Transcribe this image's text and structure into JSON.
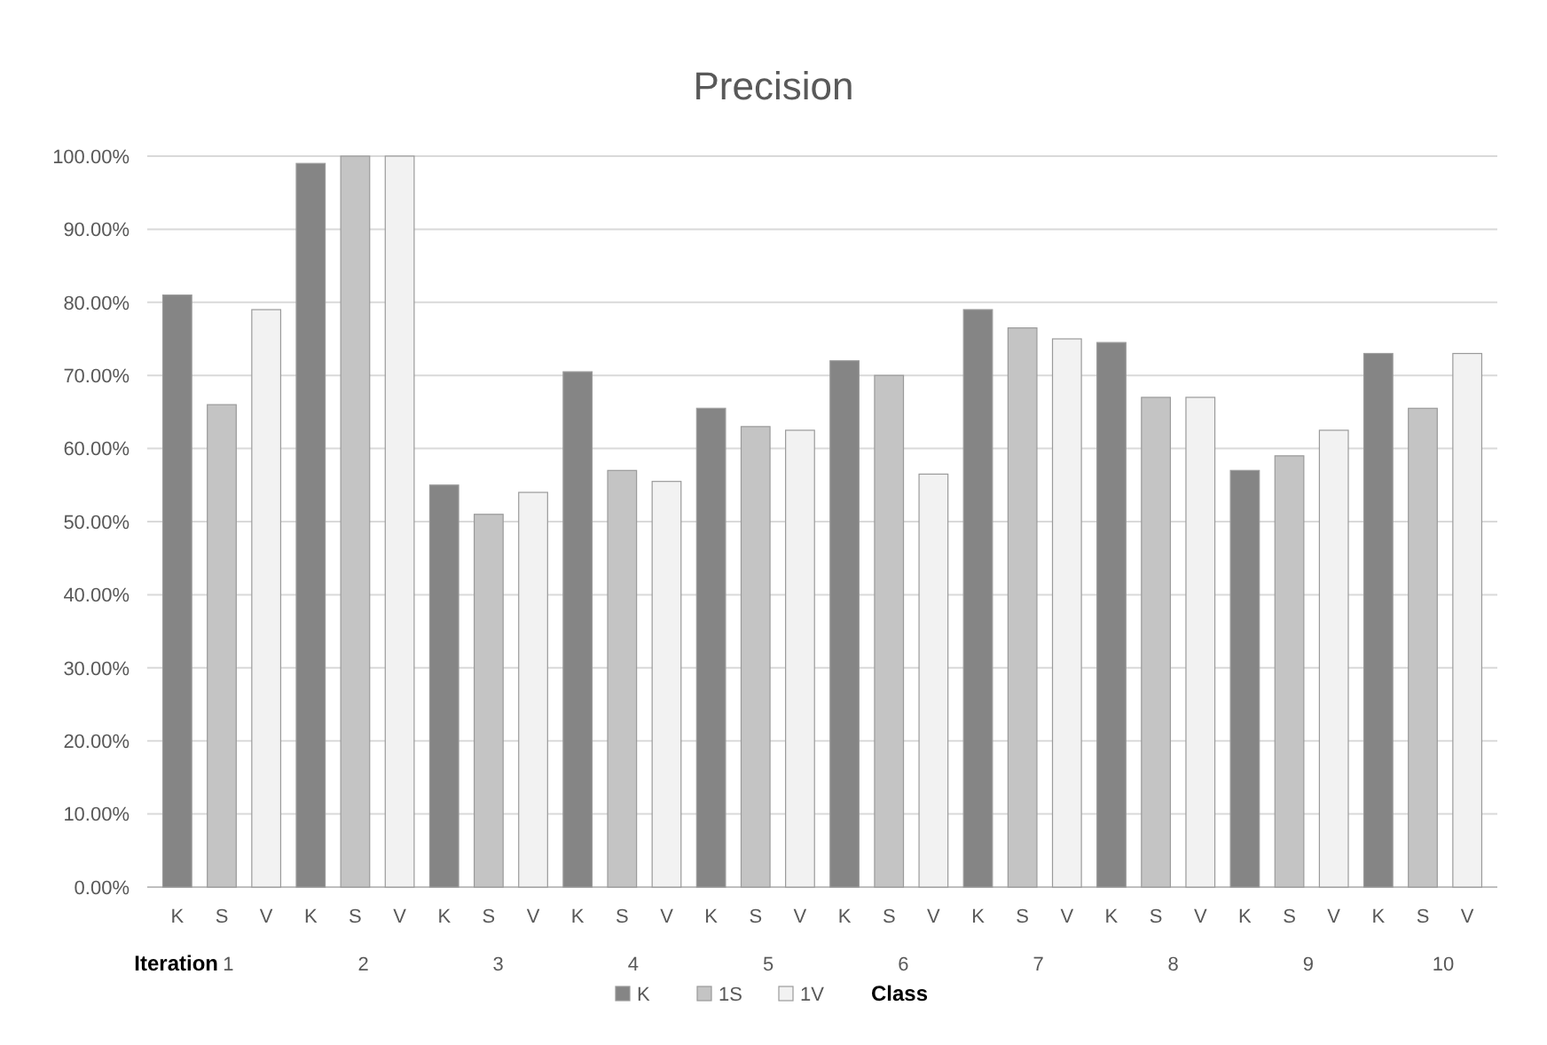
{
  "chart_data": {
    "type": "bar",
    "title": "Precision",
    "xlabel": "Iteration",
    "legend_title": "Class",
    "categories": [
      "K",
      "S",
      "V",
      "K",
      "S",
      "V",
      "K",
      "S",
      "V",
      "K",
      "S",
      "V",
      "K",
      "S",
      "V",
      "K",
      "S",
      "V",
      "K",
      "S",
      "V",
      "K",
      "S",
      "V",
      "K",
      "S",
      "V",
      "K",
      "S",
      "V"
    ],
    "annotations": [
      "1",
      "2",
      "3",
      "4",
      "5",
      "6",
      "7",
      "8",
      "9",
      "10"
    ],
    "series": [
      {
        "name": "K",
        "color": "#858585",
        "values": [
          81,
          null,
          null,
          99,
          null,
          null,
          55,
          null,
          null,
          70.5,
          null,
          null,
          65.5,
          null,
          null,
          72,
          null,
          null,
          79,
          null,
          null,
          74.5,
          null,
          null,
          57,
          null,
          null,
          73,
          null,
          null
        ]
      },
      {
        "name": "1S",
        "color": "#c4c4c4",
        "values": [
          null,
          66,
          null,
          null,
          100,
          null,
          null,
          51,
          null,
          null,
          57,
          null,
          null,
          63,
          null,
          null,
          70,
          null,
          null,
          76.5,
          null,
          null,
          67,
          null,
          null,
          59,
          null,
          null,
          65.5,
          null
        ]
      },
      {
        "name": "1V",
        "color": "#f2f2f2",
        "values": [
          null,
          null,
          79,
          null,
          null,
          100,
          null,
          null,
          54,
          null,
          null,
          55.5,
          null,
          null,
          62.5,
          null,
          null,
          56.5,
          null,
          null,
          75,
          null,
          null,
          67,
          null,
          null,
          62.5,
          null,
          null,
          73
        ]
      }
    ],
    "ylim": [
      0,
      100
    ],
    "yticks": [
      {
        "value": 0,
        "label": "0.00%"
      },
      {
        "value": 10,
        "label": "10.00%"
      },
      {
        "value": 20,
        "label": "20.00%"
      },
      {
        "value": 30,
        "label": "30.00%"
      },
      {
        "value": 40,
        "label": "40.00%"
      },
      {
        "value": 50,
        "label": "50.00%"
      },
      {
        "value": 60,
        "label": "60.00%"
      },
      {
        "value": 70,
        "label": "70.00%"
      },
      {
        "value": 80,
        "label": "80.00%"
      },
      {
        "value": 90,
        "label": "90.00%"
      },
      {
        "value": 100,
        "label": "100.00%"
      }
    ],
    "grid": true,
    "legend": "bottom"
  }
}
